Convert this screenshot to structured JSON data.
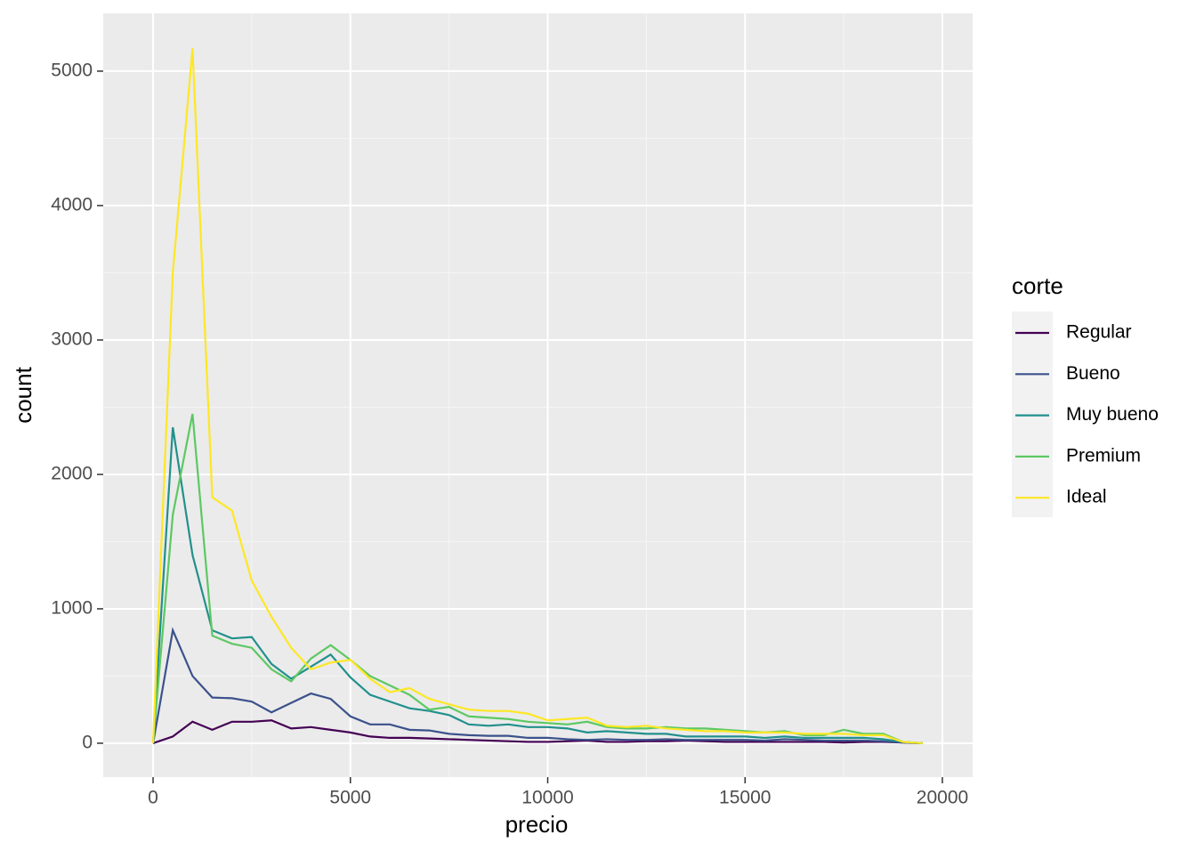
{
  "chart_data": {
    "type": "line",
    "x_label": "precio",
    "y_label": "count",
    "legend_title": "corte",
    "x": [
      0,
      500,
      1000,
      1500,
      2000,
      2500,
      3000,
      3500,
      4000,
      4500,
      5000,
      5500,
      6000,
      6500,
      7000,
      7500,
      8000,
      8500,
      9000,
      9500,
      10000,
      10500,
      11000,
      11500,
      12000,
      12500,
      13000,
      13500,
      14000,
      14500,
      15000,
      15500,
      16000,
      16500,
      17000,
      17500,
      18000,
      18500,
      19000,
      19500
    ],
    "series": [
      {
        "name": "Regular",
        "color": "#440154",
        "values": [
          0,
          50,
          160,
          100,
          160,
          160,
          170,
          110,
          120,
          100,
          80,
          50,
          40,
          40,
          35,
          30,
          25,
          20,
          15,
          10,
          10,
          15,
          20,
          10,
          10,
          15,
          15,
          20,
          15,
          10,
          10,
          10,
          10,
          10,
          10,
          5,
          10,
          10,
          5,
          0
        ]
      },
      {
        "name": "Bueno",
        "color": "#3B528B",
        "values": [
          0,
          840,
          500,
          340,
          335,
          310,
          230,
          300,
          370,
          330,
          200,
          140,
          140,
          100,
          95,
          70,
          60,
          55,
          55,
          40,
          40,
          30,
          25,
          30,
          25,
          25,
          30,
          25,
          25,
          25,
          25,
          20,
          30,
          25,
          20,
          20,
          20,
          15,
          5,
          0
        ]
      },
      {
        "name": "Muy bueno",
        "color": "#21908C",
        "values": [
          0,
          2350,
          1400,
          840,
          780,
          790,
          590,
          480,
          570,
          660,
          490,
          360,
          310,
          260,
          240,
          210,
          140,
          130,
          140,
          120,
          120,
          110,
          80,
          90,
          80,
          70,
          70,
          50,
          50,
          50,
          50,
          40,
          50,
          40,
          40,
          40,
          40,
          30,
          10,
          0
        ]
      },
      {
        "name": "Premium",
        "color": "#5DC863",
        "values": [
          0,
          1700,
          2450,
          800,
          740,
          710,
          550,
          460,
          630,
          730,
          620,
          500,
          430,
          360,
          250,
          270,
          200,
          190,
          180,
          160,
          150,
          140,
          160,
          120,
          110,
          110,
          120,
          110,
          110,
          100,
          90,
          80,
          90,
          60,
          60,
          100,
          70,
          70,
          10,
          0
        ]
      },
      {
        "name": "Ideal",
        "color": "#FDE725",
        "values": [
          0,
          3500,
          5170,
          1830,
          1730,
          1210,
          940,
          710,
          550,
          600,
          620,
          480,
          380,
          410,
          330,
          290,
          250,
          240,
          240,
          220,
          170,
          180,
          190,
          130,
          120,
          130,
          110,
          100,
          90,
          90,
          80,
          80,
          80,
          70,
          70,
          70,
          60,
          60,
          10,
          0
        ]
      }
    ],
    "xlim": [
      -1263,
      20767
    ],
    "ylim": [
      -252,
      5430
    ],
    "xticks": [
      0,
      5000,
      10000,
      15000,
      20000
    ],
    "yticks": [
      0,
      1000,
      2000,
      3000,
      4000,
      5000
    ],
    "grid": true
  }
}
